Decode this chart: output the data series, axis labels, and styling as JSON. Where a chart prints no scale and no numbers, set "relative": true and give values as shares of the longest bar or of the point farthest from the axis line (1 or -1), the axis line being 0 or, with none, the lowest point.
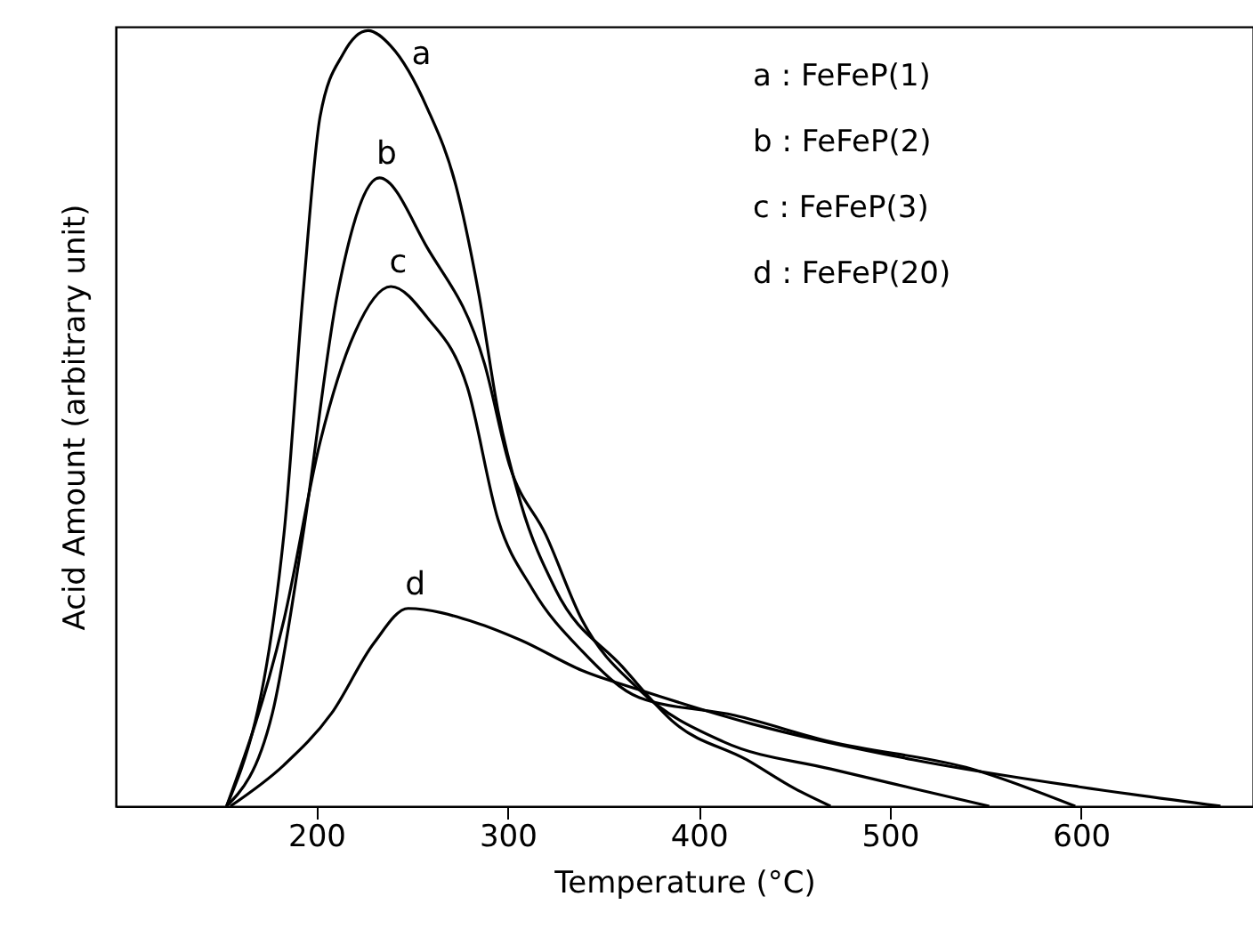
{
  "chart_data": {
    "type": "line",
    "relative": true,
    "xlabel": "Temperature (°C)",
    "ylabel": "Acid Amount (arbitrary unit)",
    "xlim": [
      95,
      690
    ],
    "xticks": [
      200,
      300,
      400,
      500,
      600
    ],
    "grid": false,
    "line_style": "solid",
    "annotations": [
      "a : FeFeP(1)",
      "b : FeFeP(2)",
      "c : FeFeP(3)",
      "d : FeFeP(20)"
    ],
    "series": [
      {
        "name": "a",
        "color": "#000000",
        "x": [
          153,
          183,
          193,
          202,
          214,
          227,
          239,
          258,
          273,
          285,
          295,
          307,
          325,
          360,
          388,
          425,
          450,
          469
        ],
        "values": [
          0,
          0.35,
          0.66,
          0.89,
          0.97,
          1.0,
          0.98,
          0.9,
          0.8,
          0.66,
          0.51,
          0.39,
          0.28,
          0.18,
          0.106,
          0.06,
          0.023,
          0
        ]
      },
      {
        "name": "b",
        "color": "#000000",
        "x": [
          153,
          177,
          193,
          211,
          233,
          258,
          288,
          301,
          320,
          339,
          369,
          413,
          469,
          512,
          552
        ],
        "values": [
          0,
          0.12,
          0.35,
          0.66,
          0.81,
          0.72,
          0.57,
          0.44,
          0.35,
          0.24,
          0.15,
          0.083,
          0.048,
          0.023,
          0
        ]
      },
      {
        "name": "c",
        "color": "#000000",
        "x": [
          153,
          183,
          202,
          220,
          239,
          258,
          279,
          295,
          313,
          339,
          369,
          419,
          469,
          543,
          597
        ],
        "values": [
          0,
          0.24,
          0.47,
          0.61,
          0.67,
          0.63,
          0.54,
          0.37,
          0.28,
          0.2,
          0.14,
          0.117,
          0.083,
          0.048,
          0
        ]
      },
      {
        "name": "d",
        "color": "#000000",
        "x": [
          155,
          183,
          208,
          230,
          248,
          283,
          307,
          339,
          369,
          428,
          512,
          599,
          673
        ],
        "values": [
          0,
          0.053,
          0.12,
          0.21,
          0.255,
          0.237,
          0.214,
          0.175,
          0.15,
          0.106,
          0.06,
          0.025,
          0
        ]
      }
    ]
  }
}
